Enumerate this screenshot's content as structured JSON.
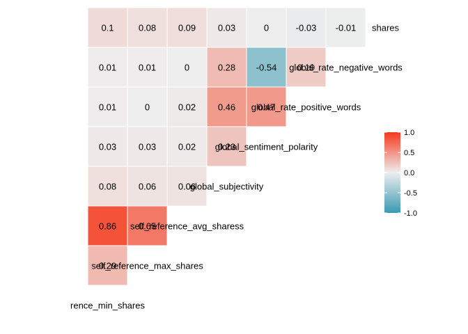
{
  "chart_data": {
    "type": "heatmap",
    "title": "",
    "variables": [
      "self_reference_min_shares",
      "self_reference_max_shares",
      "self_reference_avg_sharess",
      "global_subjectivity",
      "global_sentiment_polarity",
      "global_rate_positive_words",
      "global_rate_negative_words",
      "shares"
    ],
    "label_texts": [
      "rence_min_shares",
      "self_reference_max_shares",
      "self_reference_avg_sharess",
      "global_subjectivity",
      "global_sentiment_polarity",
      "global_rate_positive_words",
      "global_rate_negative_words",
      "shares"
    ],
    "matrix_rows": [
      [],
      [
        "0.29"
      ],
      [
        "0.86",
        "0.65"
      ],
      [
        "0.08",
        "0.06",
        "0.06"
      ],
      [
        "0.03",
        "0.03",
        "0.02",
        "0.23"
      ],
      [
        "0.01",
        "0",
        "0.02",
        "0.46",
        "0.47"
      ],
      [
        "0.01",
        "0.01",
        "0",
        "0.28",
        "-0.54",
        "0.19"
      ],
      [
        "0.1",
        "0.08",
        "0.09",
        "0.03",
        "0",
        "-0.03",
        "-0.01"
      ]
    ],
    "legend": {
      "ticks": [
        "1.0",
        "0.5",
        "0.0",
        "-0.5",
        "-1.0"
      ],
      "tick_values": [
        1,
        0.5,
        0,
        -0.5,
        -1
      ],
      "colors": {
        "high": "#F5391C",
        "mid": "#EEEEEE",
        "low": "#3A9AB2"
      },
      "range": [
        -1,
        1
      ],
      "placement": "right"
    },
    "grid": false
  }
}
